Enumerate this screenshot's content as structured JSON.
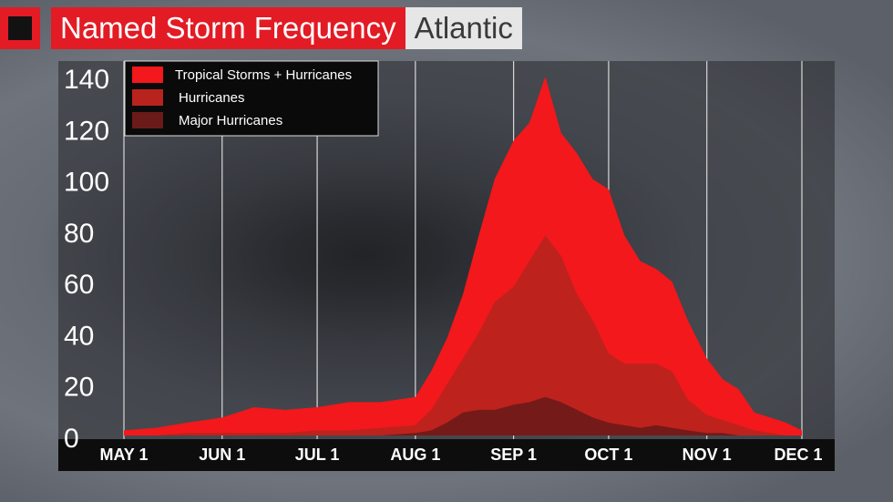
{
  "header": {
    "title": "Named Storm Frequency",
    "region": "Atlantic"
  },
  "colors": {
    "accent": "#e21b24",
    "tropical_storms": "#f2181b",
    "hurricanes": "#b8231e",
    "major_hurricanes": "#6b1a1a"
  },
  "chart_data": {
    "type": "area",
    "title": "Named Storm Frequency",
    "xlabel": "",
    "ylabel": "",
    "ylim": [
      0,
      140
    ],
    "y_ticks": [
      0,
      20,
      40,
      60,
      80,
      100,
      120,
      140
    ],
    "x_ticks": [
      "MAY 1",
      "JUN 1",
      "JUL 1",
      "AUG 1",
      "SEP 1",
      "OCT 1",
      "NOV 1",
      "DEC 1"
    ],
    "x": [
      "May 1",
      "May 11",
      "May 21",
      "Jun 1",
      "Jun 11",
      "Jun 21",
      "Jul 1",
      "Jul 11",
      "Jul 21",
      "Aug 1",
      "Aug 6",
      "Aug 11",
      "Aug 16",
      "Aug 21",
      "Aug 26",
      "Sep 1",
      "Sep 6",
      "Sep 11",
      "Sep 16",
      "Sep 21",
      "Sep 26",
      "Oct 1",
      "Oct 6",
      "Oct 11",
      "Oct 16",
      "Oct 21",
      "Oct 26",
      "Nov 1",
      "Nov 6",
      "Nov 11",
      "Nov 16",
      "Nov 21",
      "Nov 26",
      "Dec 1"
    ],
    "series": [
      {
        "name": "Tropical Storms + Hurricanes",
        "values": [
          2,
          3,
          5,
          7,
          11,
          10,
          11,
          13,
          13,
          15,
          25,
          38,
          55,
          78,
          100,
          115,
          122,
          140,
          118,
          110,
          100,
          96,
          78,
          68,
          65,
          60,
          45,
          30,
          22,
          18,
          9,
          7,
          5,
          2
        ]
      },
      {
        "name": "Hurricanes",
        "values": [
          0,
          0,
          1,
          1,
          1,
          1,
          2,
          2,
          3,
          4,
          10,
          20,
          30,
          40,
          52,
          58,
          68,
          78,
          70,
          55,
          45,
          32,
          28,
          28,
          28,
          25,
          14,
          8,
          6,
          4,
          2,
          1,
          0,
          0
        ]
      },
      {
        "name": "Major Hurricanes",
        "values": [
          0,
          0,
          0,
          0,
          0,
          0,
          0,
          0,
          0,
          1,
          2,
          5,
          9,
          10,
          10,
          12,
          13,
          15,
          13,
          10,
          7,
          5,
          4,
          3,
          4,
          3,
          2,
          1,
          1,
          0,
          0,
          0,
          0,
          0
        ]
      }
    ],
    "legend": "top-left",
    "grid": true
  }
}
